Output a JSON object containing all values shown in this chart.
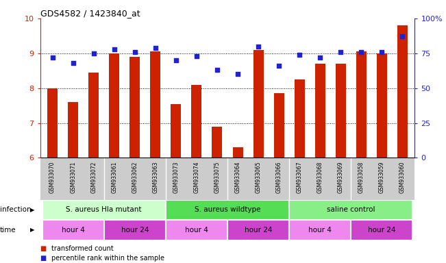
{
  "title": "GDS4582 / 1423840_at",
  "samples": [
    "GSM933070",
    "GSM933071",
    "GSM933072",
    "GSM933061",
    "GSM933062",
    "GSM933063",
    "GSM933073",
    "GSM933074",
    "GSM933075",
    "GSM933064",
    "GSM933065",
    "GSM933066",
    "GSM933067",
    "GSM933068",
    "GSM933069",
    "GSM933058",
    "GSM933059",
    "GSM933060"
  ],
  "bar_values": [
    8.0,
    7.6,
    8.45,
    9.0,
    8.9,
    9.05,
    7.55,
    8.1,
    6.9,
    6.3,
    9.1,
    7.85,
    8.25,
    8.7,
    8.7,
    9.05,
    9.0,
    9.8
  ],
  "dot_values": [
    72,
    68,
    75,
    78,
    76,
    79,
    70,
    73,
    63,
    60,
    80,
    66,
    74,
    72,
    76,
    76,
    76,
    87
  ],
  "ylim_left": [
    6,
    10
  ],
  "ylim_right": [
    0,
    100
  ],
  "yticks_left": [
    6,
    7,
    8,
    9,
    10
  ],
  "yticks_right": [
    0,
    25,
    50,
    75,
    100
  ],
  "ytick_labels_right": [
    "0",
    "25",
    "50",
    "75",
    "100%"
  ],
  "bar_color": "#cc2200",
  "dot_color": "#2222cc",
  "infection_groups": [
    {
      "label": "S. aureus Hla mutant",
      "start": 0,
      "end": 6,
      "color": "#ccffcc"
    },
    {
      "label": "S. aureus wildtype",
      "start": 6,
      "end": 12,
      "color": "#55dd55"
    },
    {
      "label": "saline control",
      "start": 12,
      "end": 18,
      "color": "#88ee88"
    }
  ],
  "time_groups": [
    {
      "label": "hour 4",
      "start": 0,
      "end": 3,
      "color": "#ee88ee"
    },
    {
      "label": "hour 24",
      "start": 3,
      "end": 6,
      "color": "#cc44cc"
    },
    {
      "label": "hour 4",
      "start": 6,
      "end": 9,
      "color": "#ee88ee"
    },
    {
      "label": "hour 24",
      "start": 9,
      "end": 12,
      "color": "#cc44cc"
    },
    {
      "label": "hour 4",
      "start": 12,
      "end": 15,
      "color": "#ee88ee"
    },
    {
      "label": "hour 24",
      "start": 15,
      "end": 18,
      "color": "#cc44cc"
    }
  ],
  "infection_label": "infection",
  "time_label": "time",
  "legend_bar_label": "transformed count",
  "legend_dot_label": "percentile rank within the sample",
  "ylabel_left_color": "#cc2200",
  "ylabel_right_color": "#2222cc",
  "label_bg_color": "#cccccc"
}
